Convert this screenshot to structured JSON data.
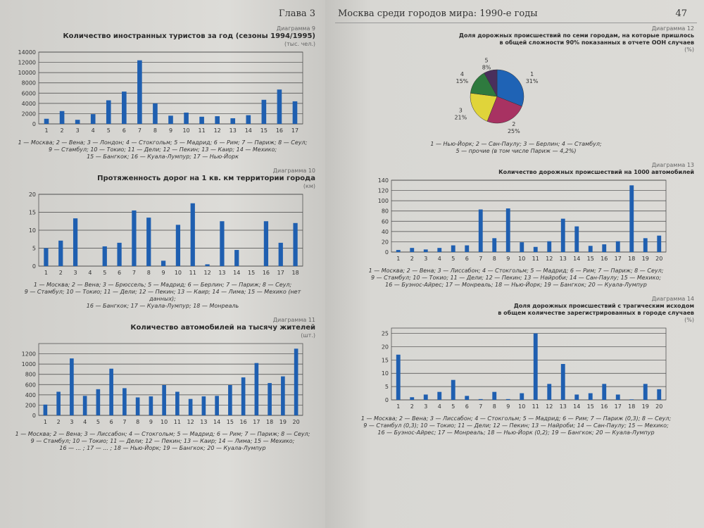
{
  "left_page": {
    "chapter": "Глава 3"
  },
  "right_page": {
    "running_head": "Москва среди городов мира: 1990-е годы",
    "page_number": "47"
  },
  "chart_data": [
    {
      "id": "tourists",
      "type": "bar",
      "diagram_number": "Диаграмма 9",
      "title": "Количество иностранных туристов за год (сезоны 1994/1995)",
      "unit": "(тыс. чел.)",
      "categories": [
        "1",
        "2",
        "3",
        "4",
        "5",
        "6",
        "7",
        "8",
        "9",
        "10",
        "11",
        "12",
        "13",
        "14",
        "15",
        "16",
        "17"
      ],
      "values": [
        1000,
        2500,
        800,
        1900,
        4600,
        6300,
        12400,
        4000,
        1600,
        2200,
        1400,
        1500,
        1100,
        1700,
        4700,
        6700,
        4400
      ],
      "yticks": [
        0,
        2000,
        4000,
        6000,
        8000,
        10000,
        12000,
        14000
      ],
      "ylim": [
        0,
        14000
      ],
      "grid": true,
      "color": "#1f5fb0",
      "legend_lines": [
        "1 — Москва; 2 — Вена; 3 — Лондон; 4 — Стокгольм; 5 — Мадрид; 6 — Рим; 7 — Париж; 8 — Сеул;",
        "9 — Стамбул; 10 — Токио; 11 — Дели; 12 — Пекин; 13 — Каир; 14 — Мехико;",
        "15 — Бангкок; 16 — Куала-Лумпур; 17 — Нью-Йорк"
      ]
    },
    {
      "id": "roads",
      "type": "bar",
      "diagram_number": "Диаграмма 10",
      "title": "Протяженность дорог на 1 кв. км территории города",
      "unit": "(км)",
      "categories": [
        "1",
        "2",
        "3",
        "4",
        "5",
        "6",
        "7",
        "8",
        "9",
        "10",
        "11",
        "12",
        "13",
        "14",
        "15",
        "16",
        "17",
        "18"
      ],
      "values": [
        5,
        7.1,
        13.3,
        0,
        5.5,
        6.5,
        15.5,
        13.5,
        1.5,
        11.5,
        17.5,
        0.5,
        12.5,
        4.5,
        0,
        12.5,
        6.5,
        12
      ],
      "yticks": [
        0,
        5,
        10,
        15,
        20
      ],
      "ylim": [
        0,
        20
      ],
      "grid": true,
      "color": "#1f5fb0",
      "legend_lines": [
        "1 — Москва; 2 — Вена; 3 — Брюссель; 5 — Мадрид; 6 — Берлин; 7 — Париж; 8 — Сеул;",
        "9 — Стамбул; 10 — Токио; 11 — Дели; 12 — Пекин; 13 — Каир; 14 — Лима; 15 — Мехико (нет данных);",
        "16 — Бангкок; 17 — Куала-Лумпур; 18 — Монреаль"
      ]
    },
    {
      "id": "cars",
      "type": "bar",
      "diagram_number": "Диаграмма 11",
      "title": "Количество автомобилей на тысячу жителей",
      "unit": "(шт.)",
      "categories": [
        "1",
        "2",
        "3",
        "4",
        "5",
        "6",
        "7",
        "8",
        "9",
        "10",
        "11",
        "12",
        "13",
        "14",
        "15",
        "16",
        "17",
        "18",
        "19",
        "20"
      ],
      "values": [
        210,
        460,
        1110,
        380,
        510,
        910,
        530,
        350,
        370,
        590,
        460,
        320,
        370,
        380,
        590,
        740,
        1020,
        630,
        760,
        1300
      ],
      "yticks": [
        0,
        200,
        400,
        600,
        800,
        1000,
        1200
      ],
      "ylim": [
        0,
        1400
      ],
      "grid": true,
      "color": "#1f5fb0",
      "legend_lines": [
        "1 — Москва; 2 — Вена; 3 — Лиссабон; 4 — Стокгольм; 5 — Мадрид; 6 — Рим; 7 — Париж; 8 — Сеул;",
        "9 — Стамбул; 10 — Токио; 11 — Дели; 12 — Пекин; 13 — Каир; 14 — Лима; 15 — Мехико;",
        "16 — ... ; 17 — ... ; 18 — Нью-Йорк; 19 — Бангкок; 20 — Куала-Лумпур"
      ]
    },
    {
      "id": "accidents_share",
      "type": "pie",
      "diagram_number": "Диаграмма 12",
      "title_lines": [
        "Доля дорожных происшествий по семи городам, на которые пришлось",
        "в общей сложности 90% показанных в отчете ООН случаев"
      ],
      "unit": "(%)",
      "slices": [
        {
          "label": "1",
          "value": 31,
          "text": "31%",
          "color": "#1f63b5"
        },
        {
          "label": "2",
          "value": 25,
          "text": "25%",
          "color": "#a83262"
        },
        {
          "label": "3",
          "value": 21,
          "text": "21%",
          "color": "#e0d43a"
        },
        {
          "label": "4",
          "value": 15,
          "text": "15%",
          "color": "#2e7a3e"
        },
        {
          "label": "5",
          "value": 8,
          "text": "8%",
          "color": "#4a2f5c"
        }
      ],
      "legend_lines": [
        "1 — Нью-Йорк; 2 — Сан-Паулу; 3 — Берлин; 4 — Стамбул;",
        "5 — прочие (в том числе Париж — 4,2%)"
      ]
    },
    {
      "id": "accidents_per_1000",
      "type": "bar",
      "diagram_number": "Диаграмма 13",
      "title": "Количество дорожных происшествий на 1000 автомобилей",
      "categories": [
        "1",
        "2",
        "3",
        "4",
        "5",
        "6",
        "7",
        "8",
        "9",
        "10",
        "11",
        "12",
        "13",
        "14",
        "15",
        "16",
        "17",
        "18",
        "19",
        "20"
      ],
      "values": [
        4,
        8,
        5,
        8,
        13,
        13,
        83,
        27,
        85,
        19,
        10,
        21,
        65,
        50,
        12,
        15,
        21,
        130,
        27,
        32
      ],
      "yticks": [
        0,
        20,
        40,
        60,
        80,
        100,
        120,
        140
      ],
      "ylim": [
        0,
        140
      ],
      "grid": true,
      "color": "#1f5fb0",
      "legend_lines": [
        "1 — Москва; 2 — Вена; 3 — Лиссабон; 4 — Стокгольм; 5 — Мадрид; 6 — Рим; 7 — Париж; 8 — Сеул;",
        "9 — Стамбул; 10 — Токио; 11 — Дели; 12 — Пекин; 13 — Найроби; 14 — Сан-Паулу; 15 — Мехико;",
        "16 — Буэнос-Айрес; 17 — Монреаль; 18 — Нью-Йорк; 19 — Бангкок; 20 — Куала-Лумпур"
      ]
    },
    {
      "id": "fatal_share",
      "type": "bar",
      "diagram_number": "Диаграмма 14",
      "title_lines": [
        "Доля дорожных происшествий с трагическим исходом",
        "в общем количестве зарегистрированных в городе случаев"
      ],
      "unit": "(%)",
      "categories": [
        "1",
        "2",
        "3",
        "4",
        "5",
        "6",
        "7",
        "8",
        "9",
        "10",
        "11",
        "12",
        "13",
        "14",
        "15",
        "16",
        "17",
        "18",
        "19",
        "20"
      ],
      "values": [
        17,
        1,
        2,
        3,
        7.5,
        1.5,
        0.3,
        3,
        0.3,
        2.5,
        25,
        6,
        13.5,
        2,
        2.5,
        6,
        2,
        0.2,
        6,
        4
      ],
      "yticks": [
        0,
        5,
        10,
        15,
        20,
        25
      ],
      "ylim": [
        0,
        27
      ],
      "grid": true,
      "color": "#1f5fb0",
      "legend_lines": [
        "1 — Москва; 2 — Вена; 3 — Лиссабон; 4 — Стокгольм; 5 — Мадрид; 6 — Рим; 7 — Париж (0,3); 8 — Сеул;",
        "9 — Стамбул (0,3); 10 — Токио; 11 — Дели; 12 — Пекин; 13 — Найроби; 14 — Сан-Паулу; 15 — Мехико;",
        "16 — Буэнос-Айрес; 17 — Монреаль; 18 — Нью-Йорк (0,2); 19 — Бангкок; 20 — Куала-Лумпур"
      ]
    }
  ]
}
